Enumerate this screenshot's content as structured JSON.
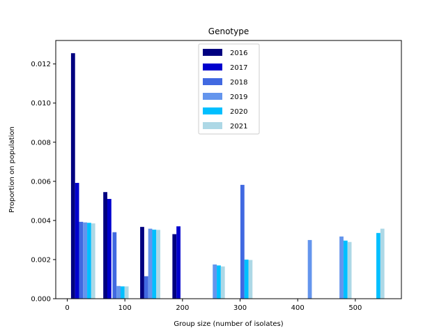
{
  "chart_data": {
    "type": "bar",
    "title": "Genotype",
    "xlabel": "Group size (number of isolates)",
    "ylabel": "Proportion on population",
    "xlim": [
      -20,
      580
    ],
    "ylim": [
      0,
      0.0132
    ],
    "xticks": [
      0,
      100,
      200,
      300,
      400,
      500
    ],
    "yticks": [
      0.0,
      0.002,
      0.004,
      0.006,
      0.008,
      0.01,
      0.012
    ],
    "ytick_labels": [
      "0.000",
      "0.002",
      "0.004",
      "0.006",
      "0.008",
      "0.010",
      "0.012"
    ],
    "bar_width": 7,
    "legend_position": "upper center",
    "series": [
      {
        "name": "2016",
        "color": "#000080",
        "points": [
          [
            10,
            0.01255
          ],
          [
            66,
            0.00545
          ],
          [
            130,
            0.00367
          ],
          [
            186,
            0.0033
          ]
        ]
      },
      {
        "name": "2017",
        "color": "#0000cd",
        "points": [
          [
            17,
            0.00592
          ],
          [
            73,
            0.0051
          ],
          [
            193,
            0.0037
          ]
        ]
      },
      {
        "name": "2018",
        "color": "#4169e1",
        "points": [
          [
            24,
            0.00393
          ],
          [
            82,
            0.0034
          ],
          [
            137,
            0.00115
          ],
          [
            304,
            0.00582
          ]
        ]
      },
      {
        "name": "2019",
        "color": "#6495ed",
        "points": [
          [
            31,
            0.0039
          ],
          [
            89,
            0.00065
          ],
          [
            144,
            0.00358
          ],
          [
            256,
            0.00175
          ],
          [
            421,
            0.003
          ],
          [
            476,
            0.00318
          ]
        ]
      },
      {
        "name": "2020",
        "color": "#00bfff",
        "points": [
          [
            38,
            0.00388
          ],
          [
            96,
            0.00063
          ],
          [
            151,
            0.00353
          ],
          [
            263,
            0.0017
          ],
          [
            311,
            0.002
          ],
          [
            483,
            0.00297
          ],
          [
            540,
            0.00336
          ]
        ]
      },
      {
        "name": "2021",
        "color": "#add8e6",
        "points": [
          [
            45,
            0.00385
          ],
          [
            103,
            0.00063
          ],
          [
            158,
            0.00352
          ],
          [
            270,
            0.00165
          ],
          [
            318,
            0.00198
          ],
          [
            490,
            0.0029
          ],
          [
            547,
            0.00358
          ]
        ]
      }
    ]
  }
}
